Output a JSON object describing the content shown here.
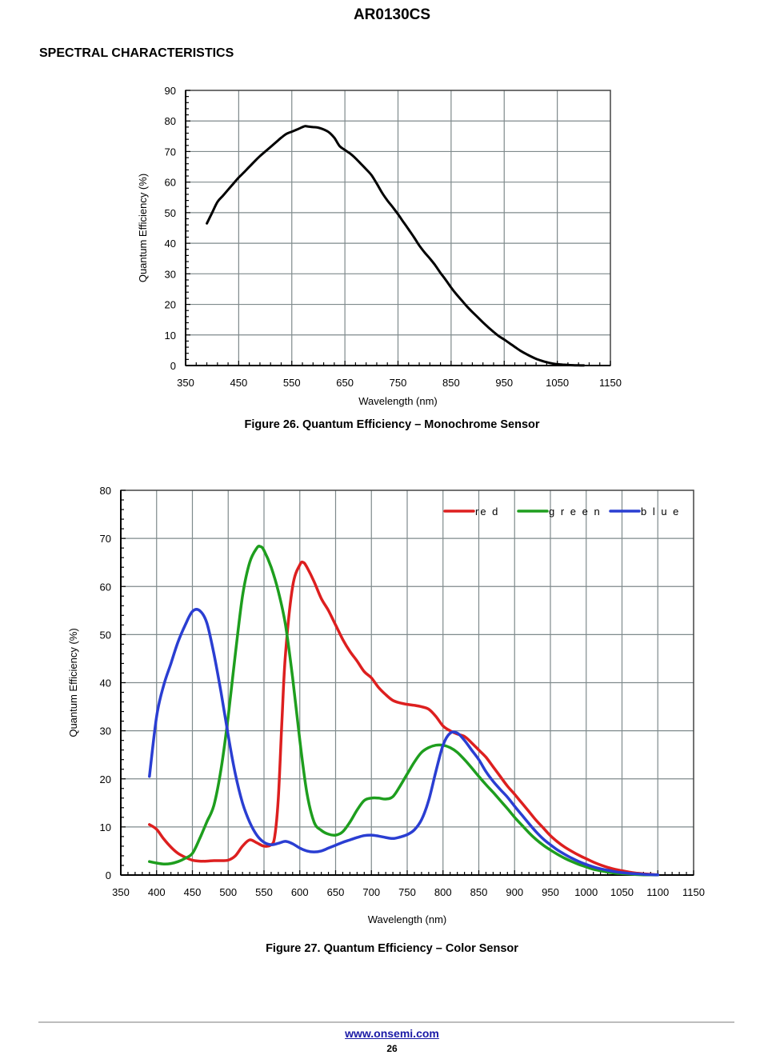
{
  "header": {
    "doc_title": "AR0130CS",
    "section_title": "SPECTRAL CHARACTERISTICS"
  },
  "chart_data": [
    {
      "type": "line",
      "title": "Figure 26. Quantum Efficiency – Monochrome Sensor",
      "xlabel": "Wavelength (nm)",
      "ylabel": "Quantum Efficiency (%)",
      "xlim": [
        350,
        1150
      ],
      "ylim": [
        0,
        90
      ],
      "xticks": [
        350,
        450,
        550,
        650,
        750,
        850,
        950,
        1050,
        1150
      ],
      "yticks": [
        0,
        10,
        20,
        30,
        40,
        50,
        60,
        70,
        80,
        90
      ],
      "grid": true,
      "series": [
        {
          "name": "mono",
          "color": "#000000",
          "x": [
            390,
            400,
            410,
            420,
            430,
            440,
            450,
            460,
            470,
            480,
            490,
            500,
            510,
            520,
            530,
            540,
            550,
            560,
            570,
            575,
            580,
            590,
            600,
            610,
            620,
            630,
            640,
            650,
            660,
            670,
            680,
            690,
            700,
            710,
            720,
            730,
            740,
            750,
            760,
            770,
            780,
            790,
            800,
            810,
            820,
            830,
            840,
            850,
            860,
            870,
            880,
            890,
            900,
            910,
            920,
            930,
            940,
            950,
            960,
            970,
            980,
            990,
            1000,
            1010,
            1020,
            1030,
            1040,
            1050,
            1060,
            1070,
            1080,
            1090,
            1100
          ],
          "y": [
            46.5,
            50,
            53.5,
            55.5,
            57.5,
            59.5,
            61.5,
            63.2,
            65,
            66.8,
            68.5,
            70,
            71.5,
            73,
            74.5,
            75.8,
            76.5,
            77.2,
            78,
            78.3,
            78.2,
            78,
            77.8,
            77.2,
            76.3,
            74.5,
            71.8,
            70.5,
            69.3,
            67.8,
            66,
            64.2,
            62.3,
            59.5,
            56.5,
            54,
            51.8,
            49.5,
            47,
            44.5,
            42,
            39.3,
            37,
            35,
            32.8,
            30.3,
            28,
            25.5,
            23.3,
            21.3,
            19.3,
            17.5,
            15.8,
            14.1,
            12.5,
            11,
            9.6,
            8.5,
            7.3,
            6.1,
            4.9,
            3.9,
            3.0,
            2.2,
            1.6,
            1.1,
            0.7,
            0.45,
            0.3,
            0.2,
            0.1,
            0.05,
            0.02
          ]
        }
      ]
    },
    {
      "type": "line",
      "title": "Figure 27. Quantum Efficiency – Color Sensor",
      "xlabel": "Wavelength (nm)",
      "ylabel": "Quantum Efficiency (%)",
      "xlim": [
        350,
        1150
      ],
      "ylim": [
        0,
        80
      ],
      "xticks": [
        350,
        400,
        450,
        500,
        550,
        600,
        650,
        700,
        750,
        800,
        850,
        900,
        950,
        1000,
        1050,
        1100,
        1150
      ],
      "yticks": [
        0,
        10,
        20,
        30,
        40,
        50,
        60,
        70,
        80
      ],
      "grid": true,
      "legend": "top-right",
      "series": [
        {
          "name": "re d",
          "color": "#dd1f1f",
          "x": [
            390,
            400,
            410,
            420,
            430,
            440,
            450,
            460,
            470,
            480,
            490,
            500,
            510,
            520,
            530,
            540,
            550,
            560,
            565,
            570,
            575,
            580,
            590,
            600,
            605,
            610,
            620,
            630,
            640,
            650,
            660,
            670,
            680,
            690,
            700,
            710,
            720,
            730,
            740,
            750,
            760,
            770,
            780,
            790,
            800,
            810,
            820,
            830,
            840,
            850,
            860,
            870,
            880,
            890,
            900,
            910,
            920,
            930,
            940,
            950,
            960,
            970,
            980,
            990,
            1000,
            1010,
            1020,
            1030,
            1040,
            1050,
            1060,
            1070,
            1080,
            1090,
            1100
          ],
          "y": [
            10.5,
            9.5,
            7.5,
            5.8,
            4.5,
            3.7,
            3.1,
            2.9,
            2.9,
            3.0,
            3.0,
            3.1,
            4.0,
            6.0,
            7.3,
            6.7,
            6.0,
            6.3,
            8.0,
            16,
            32,
            46,
            60,
            64.5,
            65,
            64,
            61,
            57.5,
            55,
            52,
            49,
            46.5,
            44.5,
            42.3,
            41,
            39,
            37.5,
            36.3,
            35.8,
            35.5,
            35.3,
            35,
            34.5,
            33,
            31,
            30,
            29.3,
            28.8,
            27.5,
            26,
            24.5,
            22.5,
            20.5,
            18.5,
            16.8,
            15,
            13.2,
            11.4,
            9.8,
            8.2,
            6.9,
            5.8,
            4.9,
            4.1,
            3.4,
            2.7,
            2.1,
            1.6,
            1.2,
            0.9,
            0.6,
            0.4,
            0.25,
            0.15,
            0.05
          ]
        },
        {
          "name": "g r e e n",
          "color": "#1e9e1e",
          "x": [
            390,
            400,
            410,
            420,
            430,
            440,
            450,
            460,
            470,
            480,
            490,
            500,
            510,
            520,
            530,
            540,
            545,
            550,
            560,
            570,
            580,
            590,
            600,
            610,
            620,
            630,
            640,
            650,
            660,
            670,
            680,
            690,
            700,
            710,
            720,
            730,
            740,
            750,
            760,
            770,
            780,
            790,
            800,
            810,
            820,
            830,
            840,
            850,
            860,
            870,
            880,
            890,
            900,
            910,
            920,
            930,
            940,
            950,
            960,
            970,
            980,
            990,
            1000,
            1010,
            1020,
            1030,
            1040,
            1050,
            1060,
            1070,
            1080,
            1090,
            1100
          ],
          "y": [
            2.8,
            2.5,
            2.3,
            2.4,
            2.8,
            3.5,
            4.5,
            7.5,
            11,
            14.5,
            22,
            33,
            46,
            58,
            65,
            68,
            68.3,
            67.5,
            64,
            59,
            52,
            41,
            28,
            17,
            11,
            9.3,
            8.5,
            8.3,
            9,
            11,
            13.5,
            15.5,
            16,
            16,
            15.8,
            16.3,
            18.5,
            21,
            23.5,
            25.5,
            26.5,
            27,
            27,
            26.5,
            25.5,
            24,
            22.3,
            20.5,
            18.8,
            17.2,
            15.5,
            13.8,
            12,
            10.4,
            8.8,
            7.4,
            6.2,
            5.2,
            4.3,
            3.5,
            2.8,
            2.2,
            1.7,
            1.2,
            0.9,
            0.6,
            0.4,
            0.3,
            0.2,
            0.1,
            0.05,
            0.03,
            0.02
          ]
        },
        {
          "name": "b l u e",
          "color": "#2a3ed2",
          "x": [
            390,
            400,
            410,
            420,
            430,
            440,
            450,
            460,
            470,
            480,
            490,
            500,
            510,
            520,
            530,
            540,
            550,
            560,
            570,
            580,
            590,
            600,
            610,
            620,
            630,
            640,
            650,
            660,
            670,
            680,
            690,
            700,
            710,
            720,
            730,
            740,
            750,
            760,
            770,
            780,
            790,
            800,
            810,
            820,
            830,
            840,
            850,
            860,
            870,
            880,
            890,
            900,
            910,
            920,
            930,
            940,
            950,
            960,
            970,
            980,
            990,
            1000,
            1010,
            1020,
            1030,
            1040,
            1050,
            1060,
            1070,
            1080,
            1090,
            1100
          ],
          "y": [
            20.5,
            33,
            39.5,
            44,
            48.5,
            52,
            54.8,
            55,
            52.5,
            46,
            38,
            29,
            21,
            15,
            11,
            8.3,
            6.8,
            6.3,
            6.6,
            7.0,
            6.5,
            5.6,
            5.0,
            4.8,
            5.0,
            5.6,
            6.2,
            6.8,
            7.3,
            7.8,
            8.2,
            8.3,
            8.1,
            7.8,
            7.6,
            7.9,
            8.4,
            9.4,
            11.5,
            15.5,
            21.5,
            27,
            29.5,
            29.5,
            28,
            26,
            24,
            21.5,
            19.5,
            17.8,
            16.2,
            14.3,
            12.5,
            10.7,
            9.0,
            7.5,
            6.3,
            5.2,
            4.3,
            3.5,
            2.8,
            2.2,
            1.7,
            1.3,
            1.0,
            0.7,
            0.5,
            0.35,
            0.25,
            0.15,
            0.08,
            0.03
          ]
        }
      ]
    }
  ],
  "captions": {
    "fig26": "Figure 26. Quantum Efficiency – Monochrome Sensor",
    "fig27": "Figure 27. Quantum Efficiency – Color Sensor"
  },
  "footer": {
    "link_text": "www.onsemi.com",
    "page_number": "26",
    "link_color": "#1a1aa6"
  }
}
